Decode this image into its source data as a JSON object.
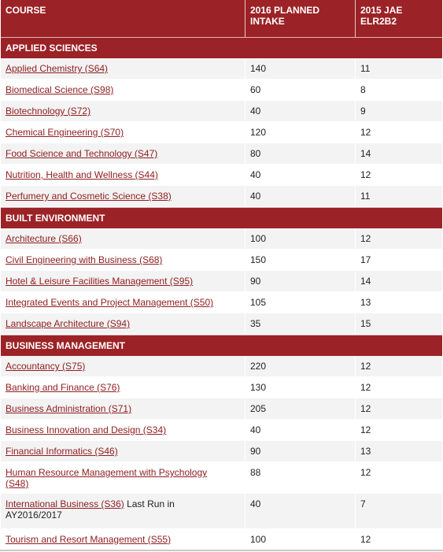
{
  "header": {
    "course": "COURSE",
    "planned_intake": "2016 PLANNED INTAKE",
    "elr2b2": "2015 JAE ELR2B2"
  },
  "sections": [
    {
      "title": "APPLIED SCIENCES",
      "rows": [
        {
          "course": "Applied Chemistry (S64)",
          "intake": "140",
          "elr2b2": "11"
        },
        {
          "course": "Biomedical Science (S98)",
          "intake": "60",
          "elr2b2": "8"
        },
        {
          "course": "Biotechnology (S72)",
          "intake": "40",
          "elr2b2": "9"
        },
        {
          "course": "Chemical Engineering (S70)",
          "intake": "120",
          "elr2b2": "12"
        },
        {
          "course": "Food Science and Technology (S47)",
          "intake": "80",
          "elr2b2": "14"
        },
        {
          "course": "Nutrition, Health and Wellness (S44)",
          "intake": "40",
          "elr2b2": "12"
        },
        {
          "course": "Perfumery and Cosmetic Science (S38)",
          "intake": "40",
          "elr2b2": "11"
        }
      ]
    },
    {
      "title": "BUILT ENVIRONMENT",
      "rows": [
        {
          "course": "Architecture (S66)",
          "intake": "100",
          "elr2b2": "12"
        },
        {
          "course": "Civil Engineering with Business (S68)",
          "intake": "150",
          "elr2b2": "17"
        },
        {
          "course": "Hotel & Leisure Facilities Management (S95)",
          "intake": "90",
          "elr2b2": "14"
        },
        {
          "course": "Integrated Events and Project Management (S50)",
          "intake": "105",
          "elr2b2": "13"
        },
        {
          "course": "Landscape Architecture (S94)",
          "intake": "35",
          "elr2b2": "15"
        }
      ]
    },
    {
      "title": "BUSINESS MANAGEMENT",
      "rows": [
        {
          "course": "Accountancy (S75)",
          "intake": "220",
          "elr2b2": "12"
        },
        {
          "course": "Banking and Finance (S76)",
          "intake": "130",
          "elr2b2": "12"
        },
        {
          "course": "Business Administration (S71)",
          "intake": "205",
          "elr2b2": "12"
        },
        {
          "course": "Business Innovation and Design (S34)",
          "intake": "40",
          "elr2b2": "12"
        },
        {
          "course": "Financial Informatics (S46)",
          "intake": "90",
          "elr2b2": "13"
        },
        {
          "course": "Human Resource Management with Psychology (S48)",
          "intake": "88",
          "elr2b2": "12"
        },
        {
          "course": "International Business (S36)",
          "note": " Last Run in AY2016/2017",
          "intake": "40",
          "elr2b2": "7"
        },
        {
          "course": "Tourism and Resort Management (S55)",
          "intake": "100",
          "elr2b2": "12"
        }
      ]
    }
  ],
  "colors": {
    "header_bg": "#9b2226",
    "link": "#8f1f22",
    "row_alt": "#f3f3f3"
  }
}
